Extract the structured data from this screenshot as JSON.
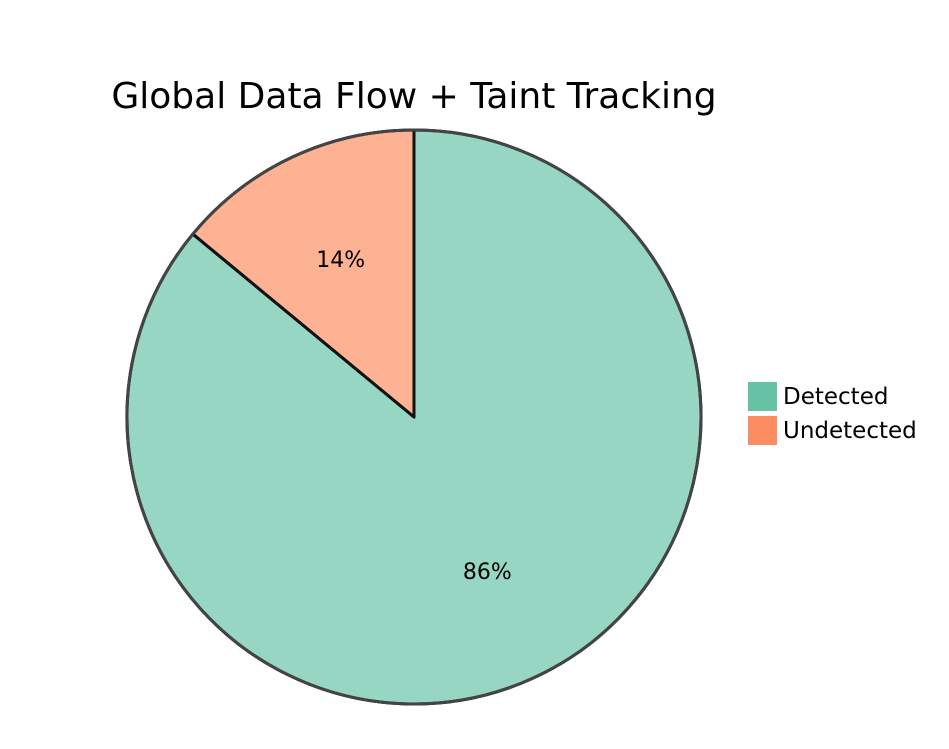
{
  "chart_data": {
    "type": "pie",
    "title": "Global Data Flow + Taint Tracking",
    "slices": [
      {
        "label": "Detected",
        "value": 86,
        "display": "86%",
        "color": "#66c2a5",
        "fill_opacity": 0.68
      },
      {
        "label": "Undetected",
        "value": 14,
        "display": "14%",
        "color": "#fc8d62",
        "fill_opacity": 0.68
      }
    ],
    "legend": {
      "placement": "right",
      "entries": [
        {
          "label": "Detected",
          "color": "#66c2a5"
        },
        {
          "label": "Undetected",
          "color": "#fc8d62"
        }
      ]
    },
    "start_angle": "top",
    "direction": "clockwise"
  }
}
